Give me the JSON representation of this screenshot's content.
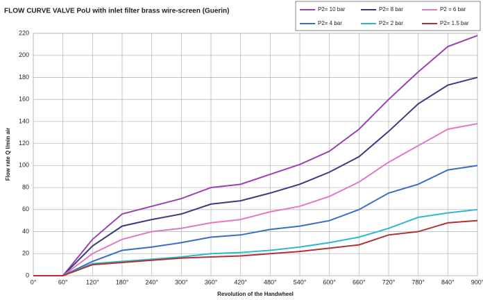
{
  "chart_data": {
    "type": "line",
    "title": "FLOW CURVE  VALVE PoU with inlet  filter brass wire-screen (Guerin)",
    "x_label": "Revolution of the Handwheel",
    "y_label": "Flow rate Q l/min air",
    "categories": [
      "0°",
      "60°",
      "120°",
      "180°",
      "240°",
      "300°",
      "360°",
      "420°",
      "480°",
      "540°",
      "600°",
      "660°",
      "720°",
      "780°",
      "840°",
      "900°"
    ],
    "series": [
      {
        "name": "P2= 10 bar",
        "color": "#9b3fb5",
        "values": [
          0,
          0,
          33,
          56,
          63,
          70,
          80,
          83,
          92,
          101,
          113,
          133,
          160,
          185,
          208,
          218
        ]
      },
      {
        "name": "P2= 8 bar",
        "color": "#3b3a7e",
        "values": [
          0,
          0,
          27,
          45,
          51,
          56,
          65,
          68,
          75,
          83,
          94,
          108,
          131,
          156,
          173,
          180
        ]
      },
      {
        "name": "P2 = 6 bar",
        "color": "#e477c4",
        "values": [
          0,
          0,
          20,
          33,
          40,
          43,
          48,
          51,
          58,
          63,
          72,
          85,
          103,
          118,
          133,
          138
        ]
      },
      {
        "name": "P2= 4 bar",
        "color": "#3a6cc6",
        "values": [
          0,
          0,
          13,
          23,
          26,
          30,
          35,
          37,
          42,
          45,
          50,
          60,
          75,
          83,
          96,
          100
        ]
      },
      {
        "name": "P2= 2 bar",
        "color": "#2bb8cc",
        "values": [
          0,
          0,
          11,
          13,
          15,
          17,
          20,
          21,
          23,
          26,
          30,
          35,
          43,
          53,
          57,
          60
        ]
      },
      {
        "name": "P2= 1.5 bar",
        "color": "#b3302e",
        "values": [
          0,
          0,
          10,
          12,
          14,
          16,
          17,
          18,
          20,
          22,
          25,
          28,
          37,
          40,
          48,
          50
        ]
      }
    ],
    "ylim": [
      0,
      220
    ],
    "yticks": [
      0,
      20,
      40,
      60,
      80,
      100,
      120,
      140,
      160,
      180,
      200,
      220
    ],
    "grid": true,
    "legend": "top-right"
  }
}
